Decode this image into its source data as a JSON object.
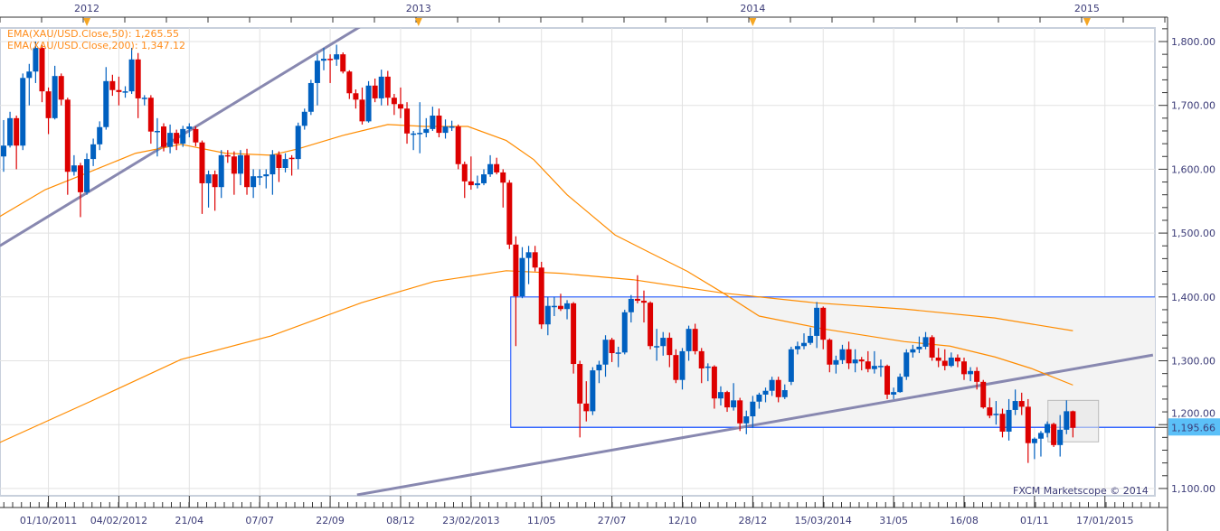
{
  "chart_data": {
    "type": "candlestick",
    "symbol": "XAU/USD",
    "legend": [
      {
        "label": "EMA(XAU/USD.Close,50): 1,265.55",
        "color": "#ff8c00"
      },
      {
        "label": "EMA(XAU/USD.Close,200): 1,347.12",
        "color": "#ff8c00"
      }
    ],
    "legend_position": "top-left",
    "watermark": "FXCM Marketscope © 2014",
    "current_price_label": "1,195.66",
    "current_price": 1195.66,
    "ylim": [
      1085,
      1820
    ],
    "y_ticks": [
      {
        "value": 1100,
        "label": "1,100.00"
      },
      {
        "value": 1200,
        "label": "1,200.00"
      },
      {
        "value": 1300,
        "label": "1,300.00"
      },
      {
        "value": 1400,
        "label": "1,400.00"
      },
      {
        "value": 1500,
        "label": "1,500.00"
      },
      {
        "value": 1600,
        "label": "1,600.00"
      },
      {
        "value": 1700,
        "label": "1,700.00"
      },
      {
        "value": 1800,
        "label": "1,800.00"
      }
    ],
    "x_ticks": [
      {
        "index": 7.0,
        "label": "01/10/2011"
      },
      {
        "index": 18.0,
        "label": "04/02/2012"
      },
      {
        "index": 29.0,
        "label": "21/04"
      },
      {
        "index": 40.0,
        "label": "07/07"
      },
      {
        "index": 51.0,
        "label": "22/09"
      },
      {
        "index": 62.0,
        "label": "08/12"
      },
      {
        "index": 73.0,
        "label": "23/02/2013"
      },
      {
        "index": 84.0,
        "label": "11/05"
      },
      {
        "index": 95.0,
        "label": "27/07"
      },
      {
        "index": 106.0,
        "label": "12/10"
      },
      {
        "index": 117.0,
        "label": "28/12"
      },
      {
        "index": 128.0,
        "label": "15/03/2014"
      },
      {
        "index": 139.0,
        "label": "31/05"
      },
      {
        "index": 150.0,
        "label": "16/08"
      },
      {
        "index": 161.0,
        "label": "01/11"
      },
      {
        "index": 172.0,
        "label": "17/01/2015"
      }
    ],
    "year_markers": [
      {
        "index": 13.0,
        "label": "2012"
      },
      {
        "index": 64.8,
        "label": "2013"
      },
      {
        "index": 117.0,
        "label": "2014"
      },
      {
        "index": 169.2,
        "label": "2015"
      }
    ],
    "x_range": [
      -0.6,
      180.5
    ],
    "candles_ohlc": [
      [
        1620,
        1677,
        1596,
        1637
      ],
      [
        1637,
        1690,
        1634,
        1680
      ],
      [
        1680,
        1684,
        1600,
        1637
      ],
      [
        1637,
        1750,
        1630,
        1743
      ],
      [
        1743,
        1765,
        1700,
        1753
      ],
      [
        1753,
        1800,
        1735,
        1790
      ],
      [
        1790,
        1795,
        1705,
        1722
      ],
      [
        1722,
        1728,
        1655,
        1680
      ],
      [
        1680,
        1762,
        1678,
        1746
      ],
      [
        1746,
        1750,
        1700,
        1709
      ],
      [
        1709,
        1712,
        1560,
        1596
      ],
      [
        1596,
        1622,
        1590,
        1606
      ],
      [
        1606,
        1610,
        1525,
        1564
      ],
      [
        1564,
        1625,
        1560,
        1616
      ],
      [
        1616,
        1648,
        1605,
        1639
      ],
      [
        1639,
        1675,
        1630,
        1666
      ],
      [
        1666,
        1760,
        1662,
        1738
      ],
      [
        1738,
        1748,
        1715,
        1724
      ],
      [
        1724,
        1745,
        1700,
        1721
      ],
      [
        1721,
        1730,
        1712,
        1722
      ],
      [
        1722,
        1790,
        1718,
        1772
      ],
      [
        1772,
        1782,
        1680,
        1711
      ],
      [
        1711,
        1716,
        1700,
        1712
      ],
      [
        1712,
        1716,
        1640,
        1659
      ],
      [
        1659,
        1680,
        1620,
        1660
      ],
      [
        1667,
        1672,
        1628,
        1635
      ],
      [
        1635,
        1670,
        1625,
        1657
      ],
      [
        1657,
        1662,
        1630,
        1640
      ],
      [
        1640,
        1668,
        1635,
        1663
      ],
      [
        1663,
        1672,
        1650,
        1667
      ],
      [
        1663,
        1667,
        1636,
        1642
      ],
      [
        1642,
        1645,
        1530,
        1578
      ],
      [
        1578,
        1598,
        1540,
        1592
      ],
      [
        1592,
        1598,
        1535,
        1572
      ],
      [
        1572,
        1630,
        1555,
        1622
      ],
      [
        1622,
        1630,
        1610,
        1620
      ],
      [
        1620,
        1628,
        1560,
        1593
      ],
      [
        1593,
        1630,
        1575,
        1622
      ],
      [
        1622,
        1632,
        1560,
        1572
      ],
      [
        1572,
        1600,
        1555,
        1589
      ],
      [
        1589,
        1600,
        1575,
        1589
      ],
      [
        1589,
        1600,
        1570,
        1592
      ],
      [
        1592,
        1630,
        1560,
        1623
      ],
      [
        1623,
        1628,
        1580,
        1602
      ],
      [
        1602,
        1625,
        1595,
        1616
      ],
      [
        1618,
        1622,
        1590,
        1616
      ],
      [
        1616,
        1673,
        1600,
        1668
      ],
      [
        1668,
        1695,
        1662,
        1690
      ],
      [
        1690,
        1740,
        1685,
        1735
      ],
      [
        1735,
        1780,
        1700,
        1770
      ],
      [
        1770,
        1790,
        1755,
        1773
      ],
      [
        1773,
        1780,
        1735,
        1772
      ],
      [
        1772,
        1795,
        1762,
        1780
      ],
      [
        1780,
        1783,
        1750,
        1753
      ],
      [
        1753,
        1755,
        1710,
        1719
      ],
      [
        1719,
        1725,
        1695,
        1709
      ],
      [
        1709,
        1728,
        1670,
        1675
      ],
      [
        1675,
        1738,
        1673,
        1731
      ],
      [
        1731,
        1742,
        1705,
        1711
      ],
      [
        1711,
        1756,
        1700,
        1745
      ],
      [
        1745,
        1754,
        1700,
        1712
      ],
      [
        1712,
        1718,
        1685,
        1702
      ],
      [
        1702,
        1728,
        1680,
        1695
      ],
      [
        1695,
        1705,
        1640,
        1656
      ],
      [
        1656,
        1660,
        1630,
        1656
      ],
      [
        1656,
        1705,
        1625,
        1657
      ],
      [
        1657,
        1680,
        1650,
        1663
      ],
      [
        1663,
        1698,
        1660,
        1684
      ],
      [
        1684,
        1695,
        1650,
        1657
      ],
      [
        1657,
        1678,
        1648,
        1667
      ],
      [
        1667,
        1676,
        1660,
        1667
      ],
      [
        1667,
        1670,
        1600,
        1608
      ],
      [
        1608,
        1612,
        1555,
        1581
      ],
      [
        1581,
        1620,
        1568,
        1575
      ],
      [
        1575,
        1590,
        1570,
        1578
      ],
      [
        1578,
        1600,
        1575,
        1592
      ],
      [
        1592,
        1622,
        1588,
        1608
      ],
      [
        1608,
        1618,
        1592,
        1595
      ],
      [
        1595,
        1600,
        1540,
        1579
      ],
      [
        1579,
        1583,
        1475,
        1482
      ],
      [
        1482,
        1495,
        1323,
        1401
      ],
      [
        1401,
        1478,
        1398,
        1461
      ],
      [
        1461,
        1480,
        1420,
        1470
      ],
      [
        1470,
        1480,
        1440,
        1446
      ],
      [
        1446,
        1455,
        1350,
        1357
      ],
      [
        1357,
        1400,
        1340,
        1386
      ],
      [
        1386,
        1400,
        1370,
        1386
      ],
      [
        1386,
        1405,
        1378,
        1381
      ],
      [
        1381,
        1395,
        1365,
        1390
      ],
      [
        1390,
        1392,
        1280,
        1295
      ],
      [
        1295,
        1300,
        1180,
        1233
      ],
      [
        1233,
        1268,
        1205,
        1221
      ],
      [
        1221,
        1290,
        1215,
        1285
      ],
      [
        1285,
        1300,
        1265,
        1294
      ],
      [
        1294,
        1340,
        1275,
        1333
      ],
      [
        1333,
        1336,
        1298,
        1312
      ],
      [
        1312,
        1322,
        1290,
        1313
      ],
      [
        1313,
        1380,
        1310,
        1376
      ],
      [
        1376,
        1403,
        1360,
        1397
      ],
      [
        1397,
        1434,
        1390,
        1394
      ],
      [
        1394,
        1410,
        1360,
        1391
      ],
      [
        1391,
        1393,
        1318,
        1323
      ],
      [
        1323,
        1350,
        1300,
        1323
      ],
      [
        1323,
        1345,
        1308,
        1336
      ],
      [
        1336,
        1344,
        1290,
        1309
      ],
      [
        1309,
        1318,
        1265,
        1270
      ],
      [
        1270,
        1320,
        1255,
        1315
      ],
      [
        1315,
        1355,
        1300,
        1350
      ],
      [
        1350,
        1358,
        1310,
        1315
      ],
      [
        1315,
        1320,
        1265,
        1288
      ],
      [
        1291,
        1296,
        1268,
        1291
      ],
      [
        1291,
        1293,
        1225,
        1241
      ],
      [
        1241,
        1260,
        1230,
        1251
      ],
      [
        1251,
        1253,
        1220,
        1227
      ],
      [
        1227,
        1265,
        1222,
        1238
      ],
      [
        1238,
        1242,
        1190,
        1202
      ],
      [
        1202,
        1222,
        1185,
        1213
      ],
      [
        1213,
        1245,
        1195,
        1236
      ],
      [
        1236,
        1250,
        1225,
        1247
      ],
      [
        1247,
        1258,
        1235,
        1253
      ],
      [
        1253,
        1275,
        1245,
        1270
      ],
      [
        1270,
        1275,
        1235,
        1243
      ],
      [
        1243,
        1263,
        1240,
        1254
      ],
      [
        1267,
        1322,
        1262,
        1318
      ],
      [
        1318,
        1330,
        1310,
        1323
      ],
      [
        1323,
        1343,
        1318,
        1328
      ],
      [
        1328,
        1352,
        1325,
        1339
      ],
      [
        1339,
        1392,
        1320,
        1383
      ],
      [
        1383,
        1385,
        1318,
        1333
      ],
      [
        1333,
        1335,
        1282,
        1294
      ],
      [
        1294,
        1308,
        1280,
        1301
      ],
      [
        1301,
        1325,
        1295,
        1318
      ],
      [
        1318,
        1330,
        1287,
        1296
      ],
      [
        1296,
        1318,
        1282,
        1302
      ],
      [
        1302,
        1306,
        1285,
        1299
      ],
      [
        1299,
        1315,
        1282,
        1287
      ],
      [
        1287,
        1315,
        1280,
        1292
      ],
      [
        1292,
        1302,
        1275,
        1292
      ],
      [
        1292,
        1294,
        1240,
        1247
      ],
      [
        1247,
        1258,
        1240,
        1251
      ],
      [
        1251,
        1280,
        1250,
        1275
      ],
      [
        1275,
        1318,
        1270,
        1313
      ],
      [
        1313,
        1325,
        1305,
        1318
      ],
      [
        1318,
        1338,
        1312,
        1322
      ],
      [
        1322,
        1345,
        1318,
        1337
      ],
      [
        1337,
        1340,
        1300,
        1305
      ],
      [
        1305,
        1320,
        1290,
        1300
      ],
      [
        1300,
        1318,
        1285,
        1292
      ],
      [
        1292,
        1313,
        1290,
        1305
      ],
      [
        1305,
        1310,
        1290,
        1299
      ],
      [
        1299,
        1305,
        1270,
        1279
      ],
      [
        1279,
        1290,
        1268,
        1284
      ],
      [
        1284,
        1290,
        1255,
        1267
      ],
      [
        1267,
        1270,
        1225,
        1227
      ],
      [
        1227,
        1242,
        1210,
        1214
      ],
      [
        1217,
        1237,
        1200,
        1217
      ],
      [
        1217,
        1225,
        1180,
        1189
      ],
      [
        1189,
        1240,
        1175,
        1223
      ],
      [
        1223,
        1255,
        1215,
        1237
      ],
      [
        1237,
        1250,
        1215,
        1228
      ],
      [
        1228,
        1240,
        1140,
        1171
      ],
      [
        1171,
        1180,
        1146,
        1178
      ],
      [
        1178,
        1190,
        1150,
        1187
      ],
      [
        1187,
        1205,
        1180,
        1201
      ],
      [
        1201,
        1203,
        1165,
        1168
      ],
      [
        1168,
        1215,
        1150,
        1192
      ],
      [
        1192,
        1238,
        1185,
        1221
      ],
      [
        1221,
        1222,
        1180,
        1195
      ]
    ],
    "ema50": [
      [
        -0.6,
        1526
      ],
      [
        6.5,
        1568
      ],
      [
        13.5,
        1596
      ],
      [
        20.6,
        1625
      ],
      [
        27.7,
        1639
      ],
      [
        34.7,
        1625
      ],
      [
        41.8,
        1622
      ],
      [
        46,
        1632
      ],
      [
        53,
        1653
      ],
      [
        60,
        1670
      ],
      [
        65.8,
        1667
      ],
      [
        72.5,
        1667
      ],
      [
        78.5,
        1645
      ],
      [
        82.8,
        1615
      ],
      [
        88,
        1560
      ],
      [
        95.5,
        1497
      ],
      [
        101,
        1469
      ],
      [
        106.8,
        1440
      ],
      [
        112.4,
        1406
      ],
      [
        118,
        1370
      ],
      [
        128,
        1350
      ],
      [
        140.7,
        1330
      ],
      [
        147.8,
        1323
      ],
      [
        154.8,
        1306
      ],
      [
        160.5,
        1288
      ],
      [
        167,
        1262
      ]
    ],
    "ema200": [
      [
        -0.6,
        1172
      ],
      [
        13.5,
        1236
      ],
      [
        27.7,
        1302
      ],
      [
        41.8,
        1339
      ],
      [
        55.9,
        1391
      ],
      [
        67.2,
        1424
      ],
      [
        78.5,
        1441
      ],
      [
        87,
        1437
      ],
      [
        98.3,
        1427
      ],
      [
        112.4,
        1406
      ],
      [
        126.5,
        1391
      ],
      [
        140.7,
        1381
      ],
      [
        154.8,
        1367
      ],
      [
        167,
        1347
      ]
    ],
    "trendlines": [
      {
        "name": "upper-support-line",
        "from": [
          -0.6,
          1480
        ],
        "to": [
          65.8,
          1885
        ]
      },
      {
        "name": "lower-support-line",
        "from": [
          55.2,
          1090
        ],
        "to": [
          179.5,
          1309
        ]
      }
    ],
    "range_box": {
      "from_index": 79.2,
      "top": 1400,
      "bottom": 1195.66
    },
    "highlight_box": {
      "from_index": 163.1,
      "to_index": 171.0,
      "top": 1238,
      "bottom": 1173
    },
    "colors": {
      "up": "#0060c0",
      "down": "#dd0000",
      "ema": "#ff8c00",
      "trendline": "#8888b0",
      "range": "#3366ff",
      "highlight": "#f4c030",
      "price_tag": "#5bc0f8"
    }
  }
}
